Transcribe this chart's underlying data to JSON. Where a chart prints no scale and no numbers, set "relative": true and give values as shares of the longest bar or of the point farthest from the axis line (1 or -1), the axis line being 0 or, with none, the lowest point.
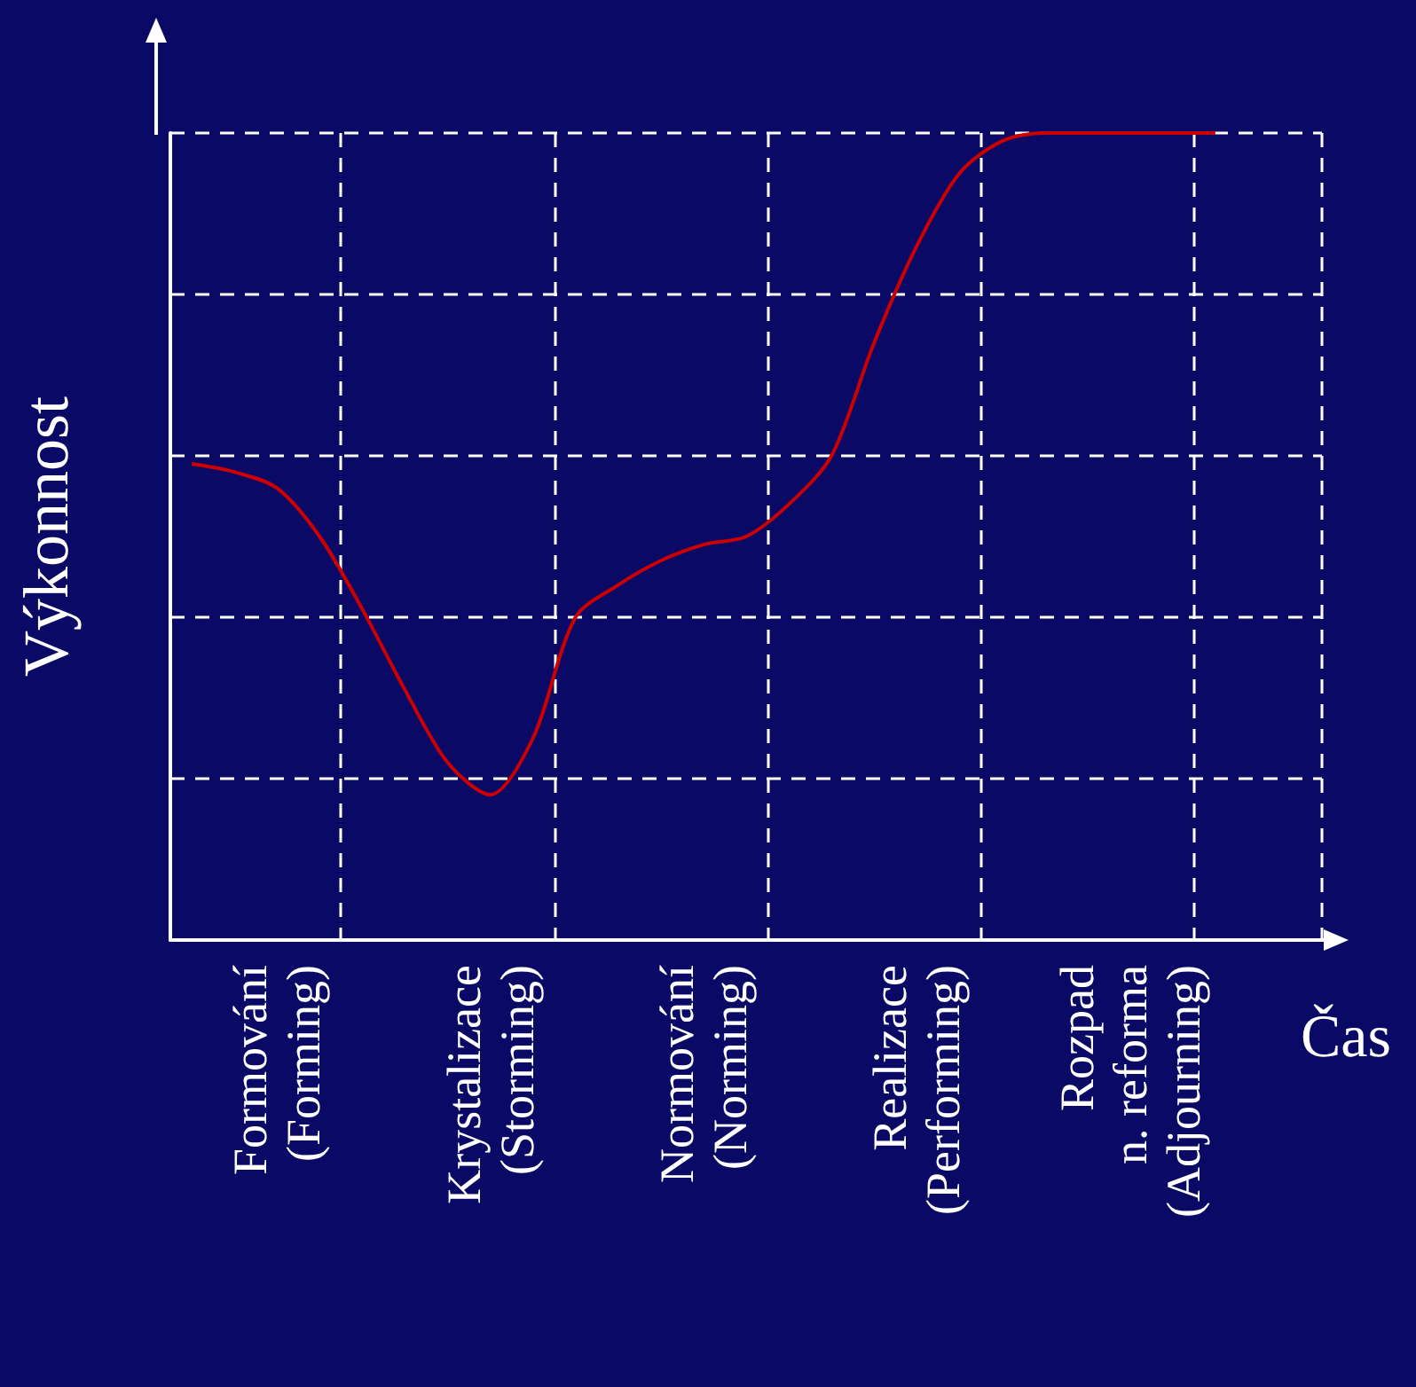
{
  "chart_data": {
    "type": "line",
    "relative": true,
    "xlabel": "Čas",
    "ylabel": "Výkonnost",
    "grid": true,
    "categories": [
      null,
      null,
      "Formování\n(Forming)",
      null,
      null,
      null,
      null,
      "Krystalizace\n(Storming)",
      null,
      null,
      null,
      null,
      "Normování\n(Norming)",
      null,
      null,
      null,
      null,
      "Realizace\n(Performing)",
      null,
      null,
      null,
      null,
      "Rozpad\nn. reforma\n(Adjourning)",
      null,
      null,
      null,
      null
    ],
    "series": [
      {
        "color": "#cc0000",
        "values": [
          0.59,
          0.58,
          0.56,
          0.5,
          0.41,
          0.31,
          0.22,
          0.18,
          0.25,
          0.4,
          0.44,
          0.47,
          0.49,
          0.5,
          0.54,
          0.6,
          0.74,
          0.86,
          0.95,
          0.99,
          1,
          1,
          1,
          1,
          1,
          null,
          null
        ]
      }
    ]
  }
}
